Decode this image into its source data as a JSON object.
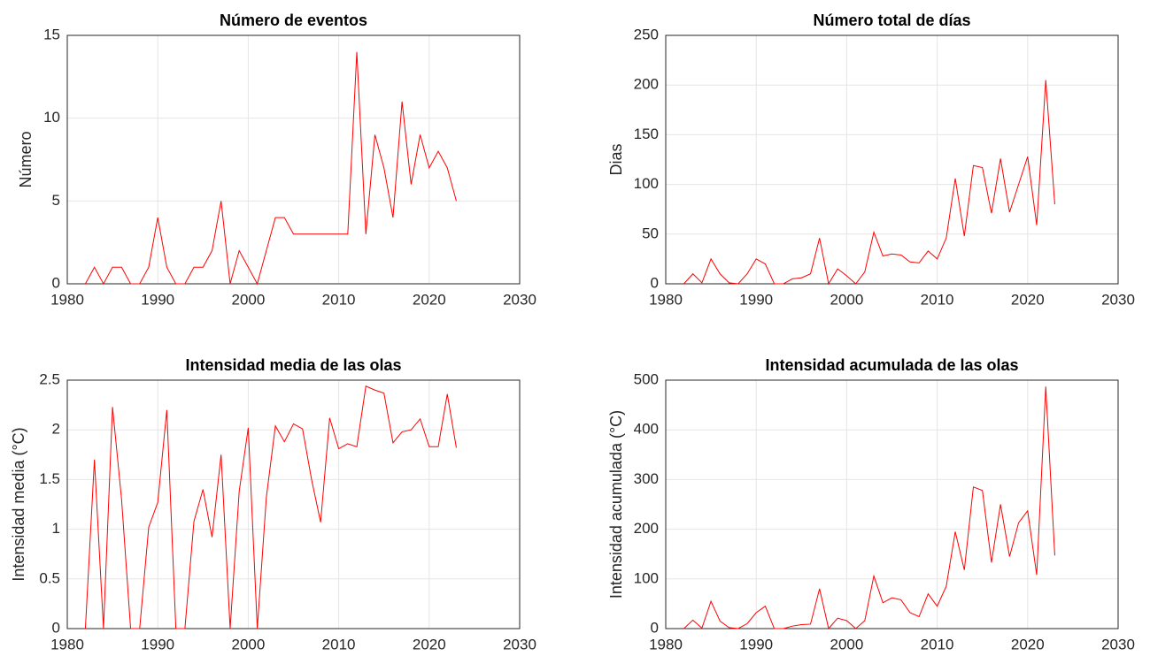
{
  "chart_data": [
    {
      "type": "line",
      "title": "Número de eventos",
      "ylabel": "Número",
      "color": "#ff0000",
      "grid": true,
      "x": [
        1982,
        1983,
        1984,
        1985,
        1986,
        1987,
        1988,
        1989,
        1990,
        1991,
        1992,
        1993,
        1994,
        1995,
        1996,
        1997,
        1998,
        1999,
        2000,
        2001,
        2002,
        2003,
        2004,
        2005,
        2006,
        2007,
        2008,
        2009,
        2010,
        2011,
        2012,
        2013,
        2014,
        2015,
        2016,
        2017,
        2018,
        2019,
        2020,
        2021,
        2022,
        2023
      ],
      "values": [
        0,
        1,
        0,
        1,
        1,
        0,
        0,
        1,
        4,
        1,
        0,
        0,
        1,
        1,
        2,
        5,
        0,
        2,
        1,
        0,
        2,
        4,
        4,
        3,
        3,
        3,
        3,
        3,
        3,
        3,
        14,
        3,
        9,
        7,
        4,
        11,
        6,
        9,
        7,
        8,
        7,
        5
      ],
      "xlim": [
        1980,
        2030
      ],
      "xticks": [
        1980,
        1990,
        2000,
        2010,
        2020,
        2030
      ],
      "ylim": [
        0,
        15
      ],
      "yticks": [
        0,
        5,
        10,
        15
      ]
    },
    {
      "type": "line",
      "title": "Número total de días",
      "ylabel": "Dias",
      "color": "#ff0000",
      "grid": true,
      "x": [
        1982,
        1983,
        1984,
        1985,
        1986,
        1987,
        1988,
        1989,
        1990,
        1991,
        1992,
        1993,
        1994,
        1995,
        1996,
        1997,
        1998,
        1999,
        2000,
        2001,
        2002,
        2003,
        2004,
        2005,
        2006,
        2007,
        2008,
        2009,
        2010,
        2011,
        2012,
        2013,
        2014,
        2015,
        2016,
        2017,
        2018,
        2019,
        2020,
        2021,
        2022,
        2023
      ],
      "values": [
        0,
        10,
        1,
        25,
        10,
        1,
        0,
        10,
        25,
        20,
        0,
        0,
        5,
        6,
        10,
        46,
        0,
        15,
        8,
        0,
        12,
        52,
        28,
        30,
        29,
        22,
        21,
        33,
        25,
        46,
        106,
        48,
        119,
        117,
        71,
        126,
        72,
        100,
        128,
        59,
        205,
        80
      ],
      "xlim": [
        1980,
        2030
      ],
      "xticks": [
        1980,
        1990,
        2000,
        2010,
        2020,
        2030
      ],
      "ylim": [
        0,
        250
      ],
      "yticks": [
        0,
        50,
        100,
        150,
        200,
        250
      ]
    },
    {
      "type": "line",
      "title": "Intensidad media de las olas",
      "ylabel": "Intensidad media (°C)",
      "color": "#ff0000",
      "grid": true,
      "x": [
        1982,
        1983,
        1984,
        1985,
        1986,
        1987,
        1988,
        1989,
        1990,
        1991,
        1992,
        1993,
        1994,
        1995,
        1996,
        1997,
        1998,
        1999,
        2000,
        2001,
        2002,
        2003,
        2004,
        2005,
        2006,
        2007,
        2008,
        2009,
        2010,
        2011,
        2012,
        2013,
        2014,
        2015,
        2016,
        2017,
        2018,
        2019,
        2020,
        2021,
        2022,
        2023
      ],
      "values": [
        0,
        1.7,
        0,
        2.23,
        1.3,
        0,
        0,
        1.02,
        1.27,
        2.2,
        0,
        0,
        1.08,
        1.4,
        0.92,
        1.75,
        0,
        1.38,
        2.02,
        0,
        1.32,
        2.04,
        1.88,
        2.06,
        2.01,
        1.5,
        1.07,
        2.12,
        1.81,
        1.86,
        1.83,
        2.44,
        2.4,
        2.37,
        1.87,
        1.98,
        2.0,
        2.11,
        1.83,
        1.83,
        2.36,
        1.82
      ],
      "xlim": [
        1980,
        2030
      ],
      "xticks": [
        1980,
        1990,
        2000,
        2010,
        2020,
        2030
      ],
      "ylim": [
        0,
        2.5
      ],
      "yticks": [
        0,
        0.5,
        1,
        1.5,
        2,
        2.5
      ]
    },
    {
      "type": "line",
      "title": "Intensidad acumulada de las olas",
      "ylabel": "Intensidad acumulada (°C)",
      "color": "#ff0000",
      "grid": true,
      "x": [
        1982,
        1983,
        1984,
        1985,
        1986,
        1987,
        1988,
        1989,
        1990,
        1991,
        1992,
        1993,
        1994,
        1995,
        1996,
        1997,
        1998,
        1999,
        2000,
        2001,
        2002,
        2003,
        2004,
        2005,
        2006,
        2007,
        2008,
        2009,
        2010,
        2011,
        2012,
        2013,
        2014,
        2015,
        2016,
        2017,
        2018,
        2019,
        2020,
        2021,
        2022,
        2023
      ],
      "values": [
        0,
        17,
        1,
        55,
        15,
        2,
        0,
        10,
        32,
        45,
        0,
        0,
        5,
        8,
        9,
        80,
        0,
        21,
        16,
        0,
        16,
        106,
        52,
        62,
        58,
        32,
        24,
        70,
        45,
        85,
        195,
        118,
        285,
        278,
        133,
        250,
        145,
        213,
        237,
        108,
        487,
        147
      ],
      "xlim": [
        1980,
        2030
      ],
      "xticks": [
        1980,
        1990,
        2000,
        2010,
        2020,
        2030
      ],
      "ylim": [
        0,
        500
      ],
      "yticks": [
        0,
        100,
        200,
        300,
        400,
        500
      ]
    }
  ]
}
